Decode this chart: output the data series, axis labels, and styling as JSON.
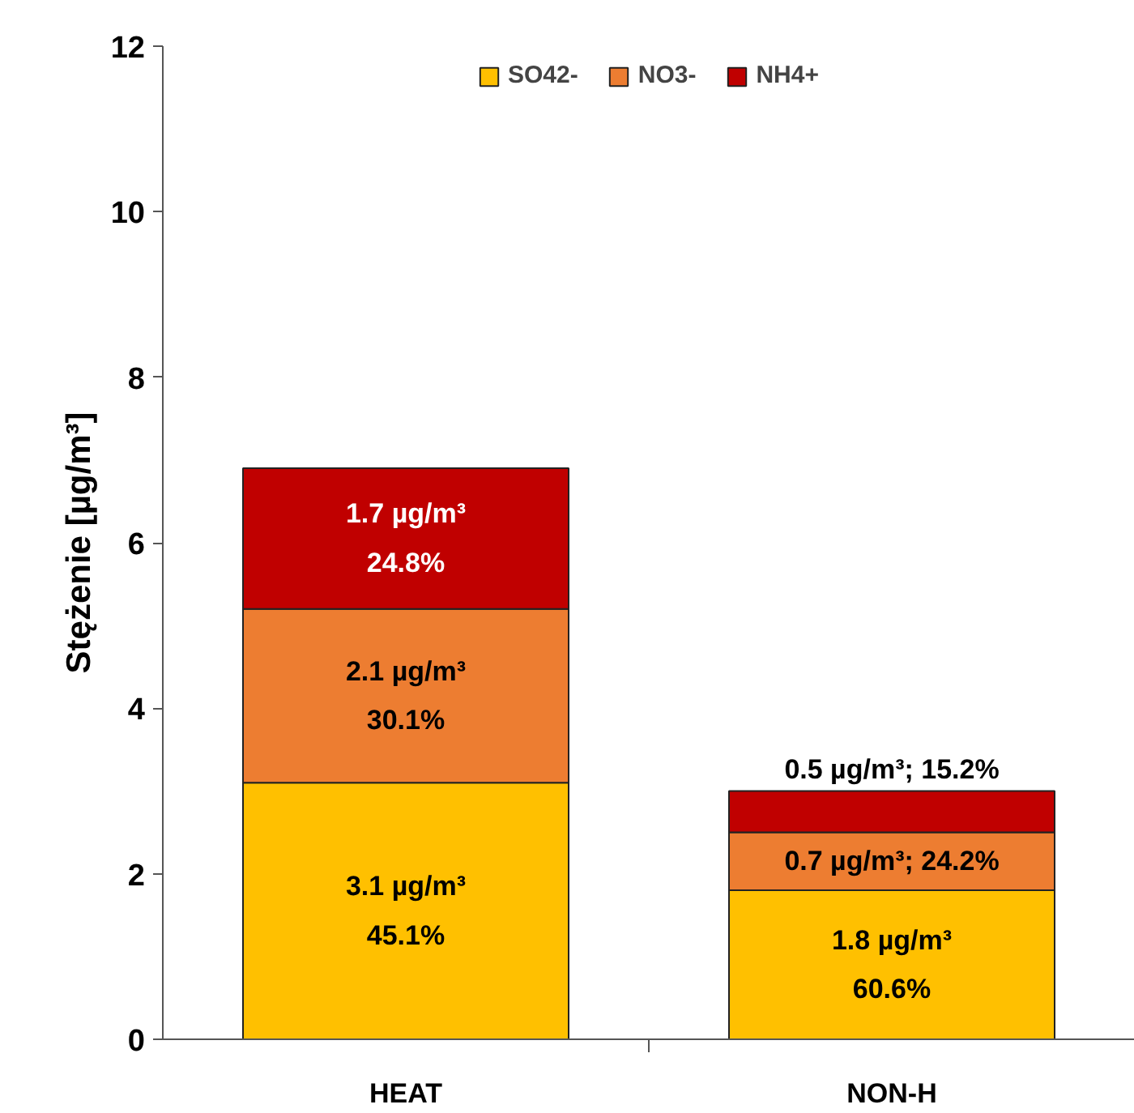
{
  "chart_data": {
    "type": "bar",
    "stacked": true,
    "categories": [
      "HEAT",
      "NON-H"
    ],
    "ylabel": "Stężenie [µg/m³]",
    "ylim": [
      0,
      12
    ],
    "yticks": [
      0,
      2,
      4,
      6,
      8,
      10,
      12
    ],
    "grid": false,
    "legend": "top",
    "series": [
      {
        "name": "SO42-",
        "color": "#ffc000",
        "values": [
          3.1,
          1.8
        ],
        "value_labels": [
          "3.1 µg/m³\n45.1%",
          "1.8 µg/m³\n60.6%"
        ]
      },
      {
        "name": "NO3-",
        "color": "#ed7d31",
        "values": [
          2.1,
          0.7
        ],
        "value_labels": [
          "2.1 µg/m³\n30.1%",
          "0.7 µg/m³; 24.2%"
        ]
      },
      {
        "name": "NH4+",
        "color": "#c00000",
        "values": [
          1.7,
          0.5
        ],
        "value_labels": [
          "1.7 µg/m³\n24.8%",
          "0.5 µg/m³; 15.2%"
        ]
      }
    ]
  }
}
